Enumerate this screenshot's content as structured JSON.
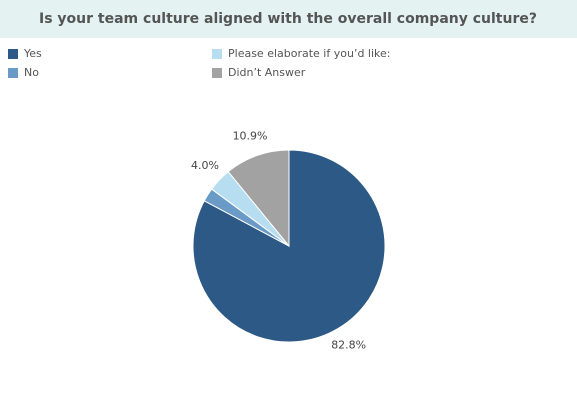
{
  "chart_data": {
    "type": "pie",
    "title": "Is your team culture aligned with the overall company culture?",
    "categories": [
      "Yes",
      "No",
      "Please elaborate if you’d like:",
      "Didn’t Answer"
    ],
    "values": [
      82.8,
      2.3,
      4.0,
      10.9
    ],
    "value_labels": [
      "82.8%",
      null,
      "4.0%",
      "10.9%"
    ],
    "colors": [
      "#2c5985",
      "#6a9ac6",
      "#b7ddf0",
      "#a2a2a2"
    ]
  }
}
